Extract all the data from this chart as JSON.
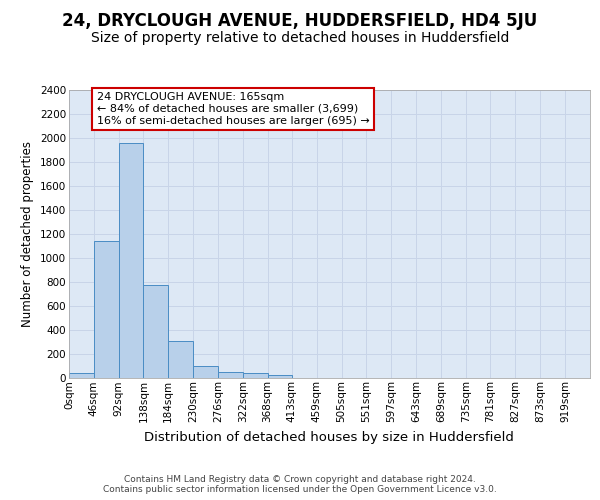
{
  "title": "24, DRYCLOUGH AVENUE, HUDDERSFIELD, HD4 5JU",
  "subtitle": "Size of property relative to detached houses in Huddersfield",
  "xlabel": "Distribution of detached houses by size in Huddersfield",
  "ylabel": "Number of detached properties",
  "bin_labels": [
    "0sqm",
    "46sqm",
    "92sqm",
    "138sqm",
    "184sqm",
    "230sqm",
    "276sqm",
    "322sqm",
    "368sqm",
    "413sqm",
    "459sqm",
    "505sqm",
    "551sqm",
    "597sqm",
    "643sqm",
    "689sqm",
    "735sqm",
    "781sqm",
    "827sqm",
    "873sqm",
    "919sqm"
  ],
  "bin_edges": [
    0,
    46,
    92,
    138,
    184,
    230,
    276,
    322,
    368,
    413,
    459,
    505,
    551,
    597,
    643,
    689,
    735,
    781,
    827,
    873,
    919,
    965
  ],
  "bar_heights": [
    35,
    1140,
    1960,
    770,
    305,
    100,
    47,
    40,
    25,
    0,
    0,
    0,
    0,
    0,
    0,
    0,
    0,
    0,
    0,
    0,
    0
  ],
  "bar_color": "#b8d0ea",
  "bar_edge_color": "#4a8cc4",
  "grid_color": "#c8d4e8",
  "background_color": "#dde8f5",
  "annotation_line1": "24 DRYCLOUGH AVENUE: 165sqm",
  "annotation_line2": "← 84% of detached houses are smaller (3,699)",
  "annotation_line3": "16% of semi-detached houses are larger (695) →",
  "annotation_box_color": "white",
  "annotation_box_edge_color": "#cc0000",
  "ylim": [
    0,
    2400
  ],
  "yticks": [
    0,
    200,
    400,
    600,
    800,
    1000,
    1200,
    1400,
    1600,
    1800,
    2000,
    2200,
    2400
  ],
  "footer_text": "Contains HM Land Registry data © Crown copyright and database right 2024.\nContains public sector information licensed under the Open Government Licence v3.0.",
  "title_fontsize": 12,
  "subtitle_fontsize": 10,
  "ylabel_fontsize": 8.5,
  "xlabel_fontsize": 9.5,
  "tick_fontsize": 7.5,
  "annotation_fontsize": 8,
  "footer_fontsize": 6.5
}
